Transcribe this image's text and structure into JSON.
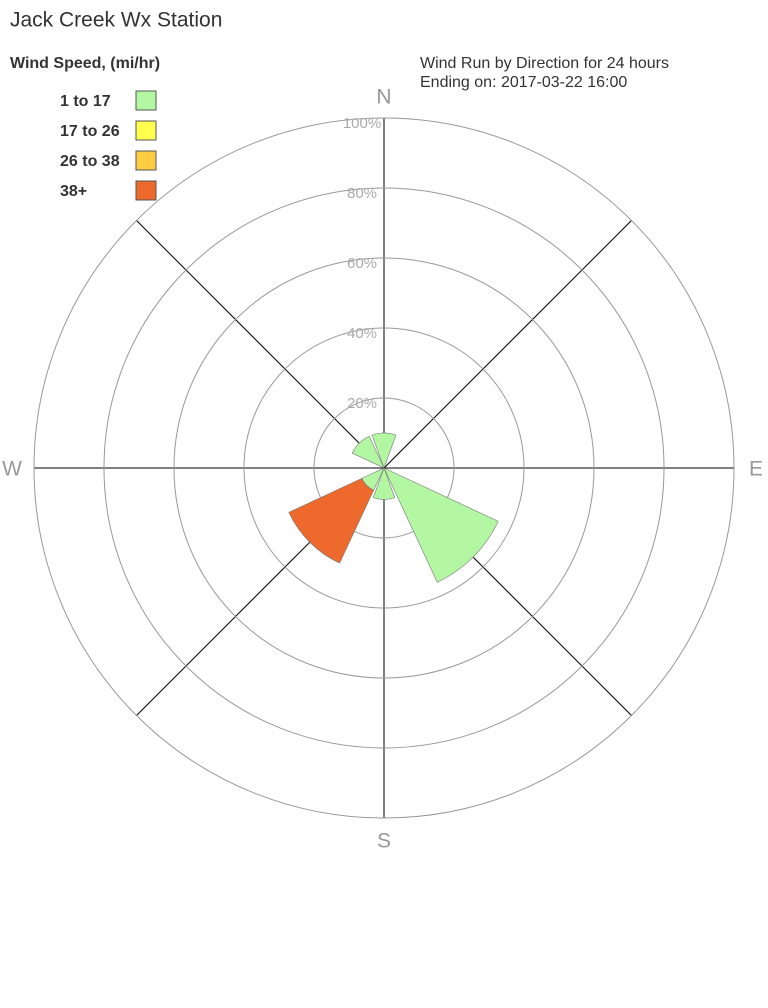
{
  "chart_data": {
    "type": "windrose",
    "title": "Jack Creek Wx Station",
    "legend_title": "Wind Speed, (mi/hr)",
    "subtitle": [
      "Wind Run by Direction for 24 hours",
      "Ending on: 2017-03-22 16:00"
    ],
    "categories": [
      "N",
      null,
      "E",
      null,
      "S",
      null,
      "W",
      null
    ],
    "series": [
      {
        "name": "1 to 17",
        "color": "#b3f7a3",
        "values": [
          10,
          0,
          0,
          36,
          9,
          7,
          0,
          10
        ]
      },
      {
        "name": "17 to 26",
        "color": "#ffff4d",
        "values": [
          0,
          0,
          0,
          0,
          0,
          0,
          0,
          0
        ]
      },
      {
        "name": "26 to 38",
        "color": "#ffcc44",
        "values": [
          0,
          0,
          0,
          0,
          0,
          0,
          0,
          0
        ]
      },
      {
        "name": "38+",
        "color": "#ee6a2c",
        "values": [
          0,
          0,
          0,
          0,
          0,
          23,
          0,
          0
        ]
      }
    ],
    "rlim": [
      0,
      100
    ],
    "rticks": [
      {
        "value": 20,
        "label": "20%"
      },
      {
        "value": 40,
        "label": "40%"
      },
      {
        "value": 60,
        "label": "60%"
      },
      {
        "value": 80,
        "label": "80%"
      },
      {
        "value": 100,
        "label": "100%"
      }
    ]
  }
}
